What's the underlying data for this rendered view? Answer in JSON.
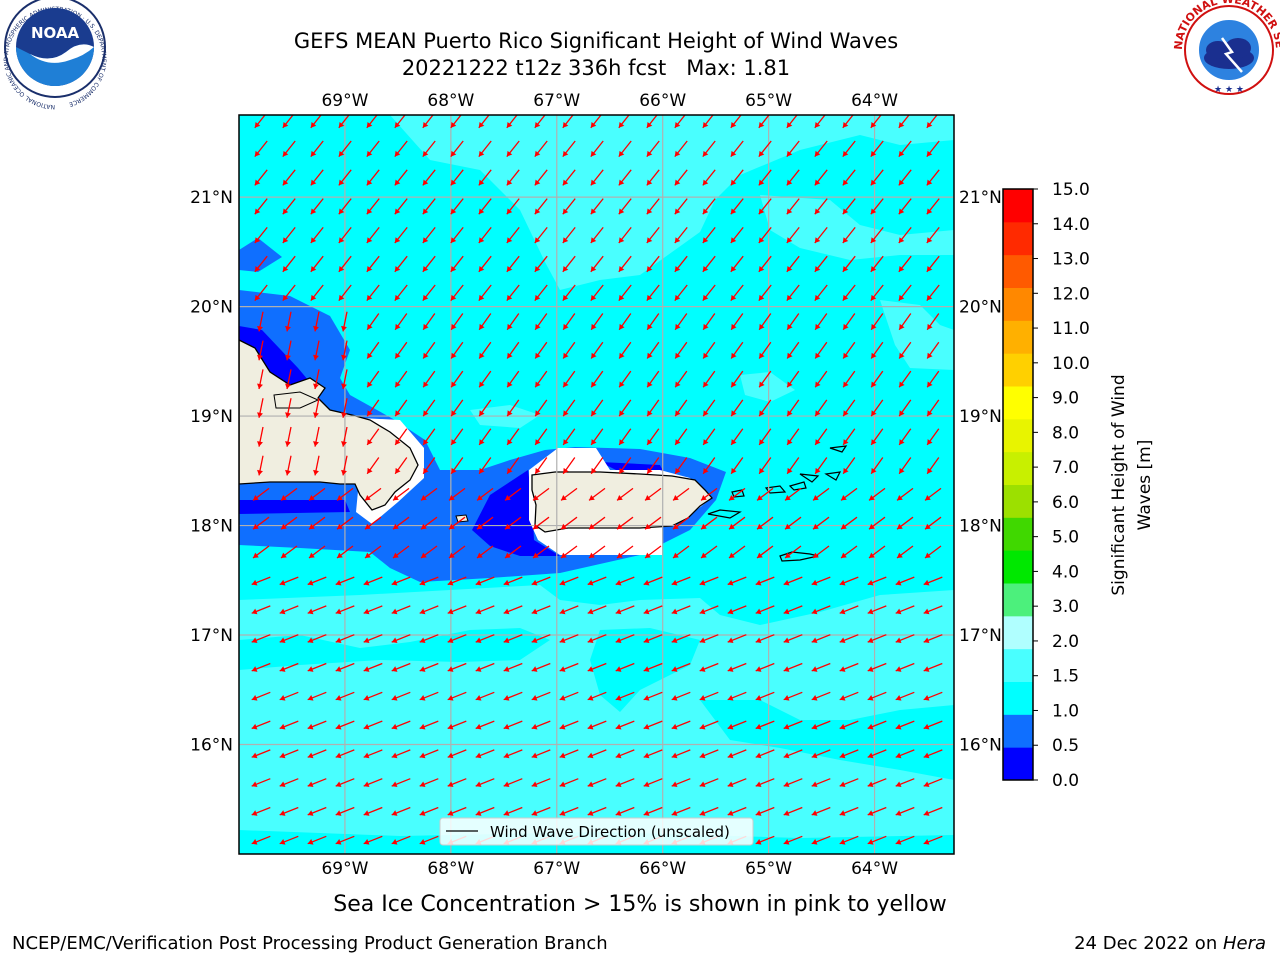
{
  "header": {
    "title_line1": "GEFS MEAN Puerto Rico Significant Height of Wind Waves",
    "title_line2": "20221222 t12z 336h fcst   Max: 1.81"
  },
  "logos": {
    "noaa_text": "NOAA",
    "noaa_ring_text": "NATIONAL OCEANIC AND ATMOSPHERIC ADMINISTRATION · U.S. DEPARTMENT OF COMMERCE",
    "nws_ring_text": "NATIONAL WEATHER SERVICE"
  },
  "map": {
    "lon_labels": [
      "69°W",
      "68°W",
      "67°W",
      "66°W",
      "65°W",
      "64°W"
    ],
    "lat_labels": [
      "16°N",
      "17°N",
      "18°N",
      "19°N",
      "20°N",
      "21°N"
    ],
    "lon_values": [
      -69,
      -68,
      -67,
      -66,
      -65,
      -64
    ],
    "lat_values": [
      16,
      17,
      18,
      19,
      20,
      21
    ],
    "lon_range": [
      -70.0,
      -63.25
    ],
    "lat_range": [
      15.0,
      21.75
    ],
    "legend_label": "Wind Wave Direction (unscaled)",
    "colors": {
      "ocean": "#00ffff",
      "land": "#f0eee0",
      "vector": "#ff0000",
      "grid": "#b0b0b0"
    }
  },
  "colorbar": {
    "label": "Significant Height of Wind Waves [m]",
    "label_line1": "Significant Height of Wind",
    "label_line2": "Waves [m]",
    "ticks": [
      "0.0",
      "0.5",
      "1.0",
      "1.5",
      "2.0",
      "3.0",
      "4.0",
      "5.0",
      "6.0",
      "7.0",
      "8.0",
      "9.0",
      "10.0",
      "11.0",
      "12.0",
      "13.0",
      "14.0",
      "15.0"
    ],
    "colors": [
      "#0000ff",
      "#0f6fff",
      "#00ffff",
      "#49ffff",
      "#b0ffff",
      "#4cf07c",
      "#00e800",
      "#40d800",
      "#9ce000",
      "#c8f000",
      "#e8f400",
      "#ffff00",
      "#ffd000",
      "#ffb000",
      "#ff8800",
      "#ff5a00",
      "#ff2a00",
      "#ff0000"
    ]
  },
  "footer": {
    "sea_ice_note": "Sea Ice Concentration > 15% is shown in pink to yellow",
    "branch": "NCEP/EMC/Verification Post Processing Product Generation Branch",
    "date": "24 Dec 2022 on ",
    "machine": "Hera"
  }
}
